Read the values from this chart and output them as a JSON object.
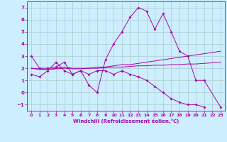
{
  "xlabel": "Windchill (Refroidissement éolien,°C)",
  "background_color": "#cceeff",
  "grid_color": "#aacccc",
  "line_color": "#aa00aa",
  "xlim": [
    -0.5,
    23.5
  ],
  "ylim": [
    -1.5,
    7.5
  ],
  "yticks": [
    -1,
    0,
    1,
    2,
    3,
    4,
    5,
    6,
    7
  ],
  "xticks": [
    0,
    1,
    2,
    3,
    4,
    5,
    6,
    7,
    8,
    9,
    10,
    11,
    12,
    13,
    14,
    15,
    16,
    17,
    18,
    19,
    20,
    21,
    22,
    23
  ],
  "series": [
    {
      "x": [
        0,
        1,
        2,
        3,
        4,
        5,
        6,
        7,
        8,
        9,
        10,
        11,
        12,
        13,
        14,
        15,
        16,
        17,
        18,
        19,
        20,
        21,
        23
      ],
      "y": [
        3.0,
        2.0,
        2.0,
        2.1,
        2.5,
        1.5,
        1.8,
        0.6,
        0.0,
        2.7,
        4.0,
        5.0,
        6.2,
        7.0,
        6.7,
        5.2,
        6.5,
        5.0,
        3.4,
        3.0,
        1.0,
        1.0,
        -1.2
      ],
      "marker": true
    },
    {
      "x": [
        0,
        1,
        2,
        3,
        4,
        5,
        6,
        7,
        8,
        9,
        10,
        11,
        12,
        13,
        14,
        15,
        16,
        17,
        18,
        19,
        20,
        21,
        22,
        23
      ],
      "y": [
        2.0,
        1.9,
        1.9,
        2.0,
        2.1,
        2.0,
        2.0,
        2.0,
        2.1,
        2.1,
        2.2,
        2.3,
        2.3,
        2.4,
        2.5,
        2.6,
        2.7,
        2.8,
        2.9,
        3.0,
        3.1,
        3.2,
        3.3,
        3.4
      ],
      "marker": false
    },
    {
      "x": [
        0,
        1,
        2,
        3,
        4,
        5,
        6,
        7,
        8,
        9,
        10,
        11,
        12,
        13,
        14,
        15,
        16,
        17,
        18,
        19,
        20,
        21,
        22,
        23
      ],
      "y": [
        2.0,
        1.95,
        1.9,
        1.95,
        2.0,
        1.95,
        1.95,
        2.0,
        2.0,
        2.05,
        2.1,
        2.1,
        2.15,
        2.2,
        2.2,
        2.25,
        2.25,
        2.3,
        2.3,
        2.35,
        2.35,
        2.4,
        2.45,
        2.5
      ],
      "marker": false
    },
    {
      "x": [
        0,
        1,
        2,
        3,
        4,
        5,
        6,
        7,
        8,
        9,
        10,
        11,
        12,
        13,
        14,
        15,
        16,
        17,
        18,
        19,
        20,
        21
      ],
      "y": [
        1.5,
        1.3,
        1.8,
        2.5,
        1.8,
        1.5,
        1.8,
        1.5,
        1.8,
        1.8,
        1.5,
        1.8,
        1.5,
        1.3,
        1.0,
        0.5,
        0.0,
        -0.5,
        -0.8,
        -1.0,
        -1.0,
        -1.2
      ],
      "marker": true
    }
  ]
}
